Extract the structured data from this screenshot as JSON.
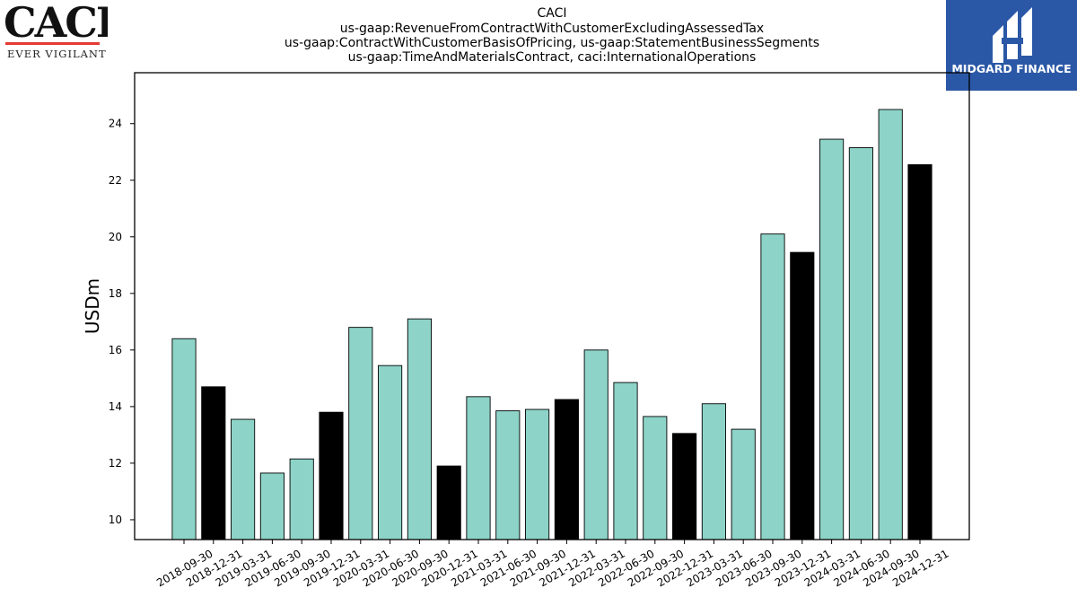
{
  "logos": {
    "left": {
      "wordmark": "CACI",
      "tagline": "EVER VIGILANT",
      "accent_color": "#e53935"
    },
    "right": {
      "brand": "MIDGARD FINANCE",
      "background_color": "#2b58a6"
    }
  },
  "chart_data": {
    "type": "bar",
    "title_lines": [
      "CACI",
      "us-gaap:RevenueFromContractWithCustomerExcludingAssessedTax",
      "us-gaap:ContractWithCustomerBasisOfPricing, us-gaap:StatementBusinessSegments",
      "us-gaap:TimeAndMaterialsContract, caci:InternationalOperations"
    ],
    "xlabel": "",
    "ylabel": "USDm",
    "ylim": [
      9.3,
      25.8
    ],
    "yticks": [
      10,
      12,
      14,
      16,
      18,
      20,
      22,
      24
    ],
    "grid": false,
    "legend": "none",
    "colors": {
      "quarter": "#8dd3c7",
      "year_end": "#000000",
      "edge": "#000000"
    },
    "categories": [
      "2018-09-30",
      "2018-12-31",
      "2019-03-31",
      "2019-06-30",
      "2019-09-30",
      "2019-12-31",
      "2020-03-31",
      "2020-06-30",
      "2020-09-30",
      "2020-12-31",
      "2021-03-31",
      "2021-06-30",
      "2021-09-30",
      "2021-12-31",
      "2022-03-31",
      "2022-06-30",
      "2022-09-30",
      "2022-12-31",
      "2023-03-31",
      "2023-06-30",
      "2023-09-30",
      "2023-12-31",
      "2024-03-31",
      "2024-06-30",
      "2024-09-30",
      "2024-12-31"
    ],
    "values": [
      16.4,
      14.7,
      13.55,
      11.65,
      12.15,
      13.8,
      16.8,
      15.45,
      17.1,
      11.9,
      14.35,
      13.85,
      13.9,
      14.25,
      16.0,
      14.85,
      13.65,
      13.05,
      14.1,
      13.2,
      20.1,
      19.45,
      23.45,
      23.15,
      24.5,
      22.55
    ],
    "year_end_flags": [
      false,
      true,
      false,
      false,
      false,
      true,
      false,
      false,
      false,
      true,
      false,
      false,
      false,
      true,
      false,
      false,
      false,
      true,
      false,
      false,
      false,
      true,
      false,
      false,
      false,
      true
    ]
  }
}
